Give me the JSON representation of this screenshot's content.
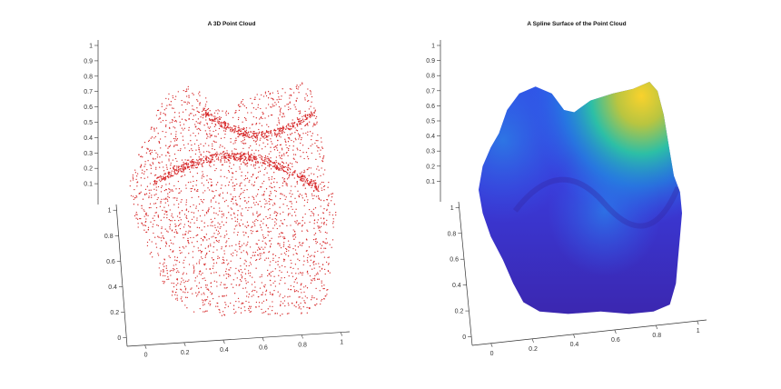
{
  "chart_data": [
    {
      "type": "scatter",
      "title": "A 3D Point Cloud",
      "marker_color": "#d62728",
      "z_ticks": [
        "0.1",
        "0.2",
        "0.3",
        "0.4",
        "0.5",
        "0.6",
        "0.7",
        "0.8",
        "0.9",
        "1"
      ],
      "y_ticks": [
        "0",
        "0.2",
        "0.4",
        "0.6",
        "0.8",
        "1"
      ],
      "x_ticks": [
        "0",
        "0.2",
        "0.4",
        "0.6",
        "0.8",
        "1"
      ],
      "xlim": [
        0,
        1
      ],
      "ylim": [
        0,
        1
      ],
      "zlim": [
        0,
        1
      ],
      "grid": false
    },
    {
      "type": "surface",
      "title": "A Spline Surface of the Point Cloud",
      "colormap": [
        "#3e26a8",
        "#2f5ff0",
        "#1ba6de",
        "#2cc39f",
        "#b5c33a",
        "#f9d22c"
      ],
      "z_ticks": [
        "0.1",
        "0.2",
        "0.3",
        "0.4",
        "0.5",
        "0.6",
        "0.7",
        "0.8",
        "0.9",
        "1"
      ],
      "y_ticks": [
        "0",
        "0.2",
        "0.4",
        "0.6",
        "0.8",
        "1"
      ],
      "x_ticks": [
        "0",
        "0.2",
        "0.4",
        "0.6",
        "0.8",
        "1"
      ],
      "xlim": [
        0,
        1
      ],
      "ylim": [
        0,
        1
      ],
      "zlim": [
        0,
        1
      ],
      "grid": false
    }
  ]
}
